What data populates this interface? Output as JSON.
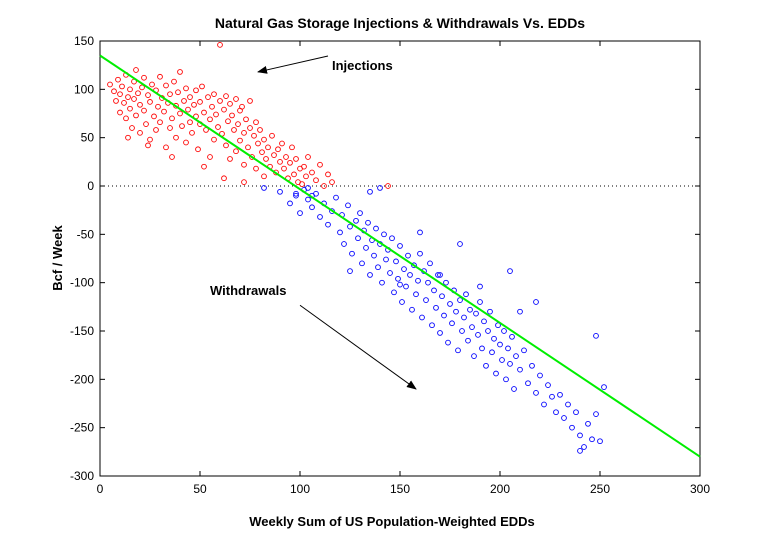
{
  "chart_data": {
    "type": "scatter",
    "title": "Natural Gas Storage Injections & Withdrawals Vs. EDDs",
    "xlabel": "Weekly Sum of US Population-Weighted EDDs",
    "ylabel": "Bcf / Week",
    "xlim": [
      0,
      300
    ],
    "ylim": [
      -300,
      150
    ],
    "xticks": [
      0,
      50,
      100,
      150,
      200,
      250,
      300
    ],
    "yticks": [
      150,
      100,
      50,
      0,
      -50,
      -100,
      -150,
      -200,
      -250,
      -300
    ],
    "grid": false,
    "zero_line": {
      "y": 0,
      "style": "dotted"
    },
    "series": [
      {
        "kind": "injections",
        "color": "#ff0000",
        "marker": "open-circle",
        "points": [
          [
            5,
            105
          ],
          [
            7,
            98
          ],
          [
            8,
            88
          ],
          [
            9,
            110
          ],
          [
            10,
            95
          ],
          [
            10,
            76
          ],
          [
            11,
            103
          ],
          [
            12,
            86
          ],
          [
            13,
            115
          ],
          [
            13,
            70
          ],
          [
            14,
            92
          ],
          [
            15,
            100
          ],
          [
            15,
            80
          ],
          [
            16,
            60
          ],
          [
            17,
            108
          ],
          [
            17,
            90
          ],
          [
            18,
            120
          ],
          [
            18,
            73
          ],
          [
            19,
            96
          ],
          [
            20,
            84
          ],
          [
            20,
            55
          ],
          [
            21,
            102
          ],
          [
            22,
            112
          ],
          [
            22,
            78
          ],
          [
            23,
            64
          ],
          [
            24,
            94
          ],
          [
            25,
            87
          ],
          [
            25,
            48
          ],
          [
            26,
            105
          ],
          [
            27,
            72
          ],
          [
            28,
            99
          ],
          [
            28,
            58
          ],
          [
            29,
            82
          ],
          [
            30,
            113
          ],
          [
            30,
            66
          ],
          [
            31,
            91
          ],
          [
            32,
            77
          ],
          [
            33,
            104
          ],
          [
            33,
            40
          ],
          [
            34,
            86
          ],
          [
            35,
            95
          ],
          [
            35,
            60
          ],
          [
            36,
            70
          ],
          [
            37,
            108
          ],
          [
            38,
            83
          ],
          [
            38,
            50
          ],
          [
            39,
            97
          ],
          [
            40,
            75
          ],
          [
            40,
            118
          ],
          [
            41,
            62
          ],
          [
            42,
            88
          ],
          [
            43,
            101
          ],
          [
            43,
            45
          ],
          [
            44,
            79
          ],
          [
            45,
            92
          ],
          [
            45,
            66
          ],
          [
            46,
            55
          ],
          [
            47,
            84
          ],
          [
            48,
            99
          ],
          [
            48,
            72
          ],
          [
            49,
            38
          ],
          [
            50,
            87
          ],
          [
            50,
            64
          ],
          [
            51,
            103
          ],
          [
            52,
            76
          ],
          [
            53,
            58
          ],
          [
            54,
            92
          ],
          [
            55,
            69
          ],
          [
            55,
            30
          ],
          [
            56,
            82
          ],
          [
            57,
            95
          ],
          [
            57,
            48
          ],
          [
            58,
            74
          ],
          [
            59,
            61
          ],
          [
            60,
            88
          ],
          [
            60,
            146
          ],
          [
            61,
            54
          ],
          [
            62,
            79
          ],
          [
            63,
            93
          ],
          [
            63,
            42
          ],
          [
            64,
            67
          ],
          [
            65,
            85
          ],
          [
            65,
            28
          ],
          [
            66,
            73
          ],
          [
            67,
            58
          ],
          [
            68,
            90
          ],
          [
            68,
            36
          ],
          [
            69,
            64
          ],
          [
            70,
            78
          ],
          [
            70,
            47
          ],
          [
            71,
            82
          ],
          [
            72,
            55
          ],
          [
            72,
            22
          ],
          [
            73,
            69
          ],
          [
            74,
            40
          ],
          [
            75,
            60
          ],
          [
            75,
            88
          ],
          [
            76,
            30
          ],
          [
            77,
            52
          ],
          [
            78,
            66
          ],
          [
            78,
            18
          ],
          [
            79,
            44
          ],
          [
            80,
            58
          ],
          [
            81,
            35
          ],
          [
            82,
            48
          ],
          [
            82,
            10
          ],
          [
            83,
            28
          ],
          [
            84,
            40
          ],
          [
            85,
            20
          ],
          [
            86,
            52
          ],
          [
            87,
            32
          ],
          [
            88,
            14
          ],
          [
            89,
            38
          ],
          [
            90,
            25
          ],
          [
            91,
            44
          ],
          [
            92,
            18
          ],
          [
            93,
            30
          ],
          [
            94,
            8
          ],
          [
            95,
            24
          ],
          [
            96,
            40
          ],
          [
            97,
            12
          ],
          [
            98,
            28
          ],
          [
            99,
            4
          ],
          [
            100,
            18
          ],
          [
            101,
            2
          ],
          [
            102,
            20
          ],
          [
            103,
            10
          ],
          [
            104,
            30
          ],
          [
            106,
            14
          ],
          [
            108,
            6
          ],
          [
            110,
            22
          ],
          [
            112,
            0
          ],
          [
            114,
            12
          ],
          [
            116,
            4
          ],
          [
            14,
            50
          ],
          [
            24,
            42
          ],
          [
            36,
            30
          ],
          [
            52,
            20
          ],
          [
            62,
            8
          ],
          [
            72,
            4
          ],
          [
            144,
            0
          ]
        ]
      },
      {
        "kind": "withdrawals",
        "color": "#0000ff",
        "marker": "open-circle",
        "points": [
          [
            82,
            -2
          ],
          [
            90,
            -6
          ],
          [
            95,
            -18
          ],
          [
            98,
            -10
          ],
          [
            100,
            -28
          ],
          [
            102,
            -4
          ],
          [
            104,
            -14
          ],
          [
            106,
            -22
          ],
          [
            108,
            -8
          ],
          [
            110,
            -32
          ],
          [
            112,
            -18
          ],
          [
            114,
            -40
          ],
          [
            116,
            -26
          ],
          [
            118,
            -12
          ],
          [
            120,
            -48
          ],
          [
            121,
            -30
          ],
          [
            122,
            -60
          ],
          [
            124,
            -20
          ],
          [
            125,
            -42
          ],
          [
            126,
            -70
          ],
          [
            128,
            -36
          ],
          [
            129,
            -54
          ],
          [
            130,
            -28
          ],
          [
            131,
            -80
          ],
          [
            132,
            -46
          ],
          [
            133,
            -64
          ],
          [
            134,
            -38
          ],
          [
            135,
            -92
          ],
          [
            136,
            -56
          ],
          [
            137,
            -72
          ],
          [
            138,
            -44
          ],
          [
            139,
            -84
          ],
          [
            140,
            -60
          ],
          [
            141,
            -100
          ],
          [
            142,
            -50
          ],
          [
            143,
            -76
          ],
          [
            144,
            -66
          ],
          [
            145,
            -90
          ],
          [
            146,
            -54
          ],
          [
            147,
            -110
          ],
          [
            148,
            -78
          ],
          [
            149,
            -96
          ],
          [
            150,
            -62
          ],
          [
            151,
            -120
          ],
          [
            152,
            -86
          ],
          [
            153,
            -104
          ],
          [
            154,
            -72
          ],
          [
            155,
            -92
          ],
          [
            156,
            -128
          ],
          [
            157,
            -82
          ],
          [
            158,
            -112
          ],
          [
            159,
            -98
          ],
          [
            160,
            -70
          ],
          [
            161,
            -136
          ],
          [
            162,
            -88
          ],
          [
            163,
            -118
          ],
          [
            164,
            -100
          ],
          [
            165,
            -80
          ],
          [
            166,
            -144
          ],
          [
            167,
            -108
          ],
          [
            168,
            -126
          ],
          [
            169,
            -92
          ],
          [
            170,
            -152
          ],
          [
            171,
            -114
          ],
          [
            172,
            -134
          ],
          [
            173,
            -100
          ],
          [
            174,
            -162
          ],
          [
            175,
            -122
          ],
          [
            176,
            -142
          ],
          [
            177,
            -108
          ],
          [
            178,
            -130
          ],
          [
            179,
            -170
          ],
          [
            180,
            -118
          ],
          [
            181,
            -150
          ],
          [
            182,
            -136
          ],
          [
            183,
            -112
          ],
          [
            184,
            -160
          ],
          [
            185,
            -128
          ],
          [
            186,
            -146
          ],
          [
            187,
            -176
          ],
          [
            188,
            -132
          ],
          [
            189,
            -154
          ],
          [
            190,
            -120
          ],
          [
            191,
            -168
          ],
          [
            192,
            -140
          ],
          [
            193,
            -186
          ],
          [
            194,
            -150
          ],
          [
            195,
            -130
          ],
          [
            196,
            -172
          ],
          [
            197,
            -158
          ],
          [
            198,
            -194
          ],
          [
            199,
            -144
          ],
          [
            200,
            -164
          ],
          [
            201,
            -180
          ],
          [
            202,
            -150
          ],
          [
            203,
            -200
          ],
          [
            204,
            -168
          ],
          [
            205,
            -184
          ],
          [
            206,
            -156
          ],
          [
            207,
            -210
          ],
          [
            208,
            -176
          ],
          [
            210,
            -190
          ],
          [
            212,
            -170
          ],
          [
            214,
            -204
          ],
          [
            216,
            -186
          ],
          [
            218,
            -214
          ],
          [
            220,
            -196
          ],
          [
            222,
            -226
          ],
          [
            224,
            -206
          ],
          [
            226,
            -218
          ],
          [
            228,
            -234
          ],
          [
            230,
            -216
          ],
          [
            232,
            -240
          ],
          [
            234,
            -226
          ],
          [
            236,
            -250
          ],
          [
            238,
            -234
          ],
          [
            240,
            -258
          ],
          [
            242,
            -270
          ],
          [
            244,
            -246
          ],
          [
            246,
            -262
          ],
          [
            248,
            -236
          ],
          [
            250,
            -264
          ],
          [
            252,
            -208
          ],
          [
            248,
            -155
          ],
          [
            218,
            -120
          ],
          [
            205,
            -88
          ],
          [
            180,
            -60
          ],
          [
            160,
            -48
          ],
          [
            140,
            -2
          ],
          [
            135,
            -6
          ],
          [
            125,
            -88
          ],
          [
            150,
            -102
          ],
          [
            170,
            -92
          ],
          [
            190,
            -104
          ],
          [
            210,
            -130
          ],
          [
            240,
            -274
          ],
          [
            98,
            -8
          ],
          [
            104,
            -2
          ],
          [
            106,
            -10
          ]
        ]
      }
    ],
    "fit_line": {
      "color": "#00ee00",
      "x": [
        0,
        300
      ],
      "y": [
        135,
        -280
      ]
    },
    "annotations": [
      {
        "text": "Injections",
        "at": [
          116,
          120
        ],
        "arrow_to": [
          79,
          118
        ]
      },
      {
        "text": "Withdrawals",
        "at": [
          55,
          -113
        ],
        "arrow_to": [
          158,
          -210
        ]
      }
    ]
  }
}
